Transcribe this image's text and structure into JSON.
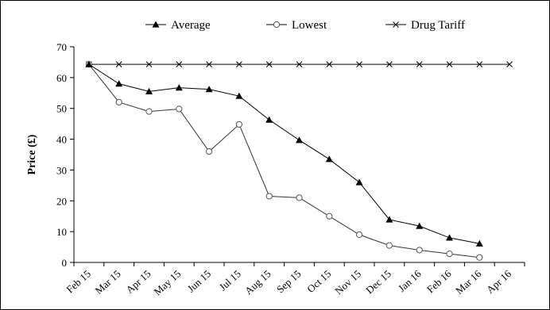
{
  "chart_data": {
    "type": "line",
    "ylabel": "Price (£)",
    "xlabel": "",
    "ylim": [
      0,
      70
    ],
    "yticks": [
      0,
      10,
      20,
      30,
      40,
      50,
      60,
      70
    ],
    "categories": [
      "Feb 15",
      "Mar 15",
      "Apr 15",
      "May 15",
      "Jun 15",
      "Jul 15",
      "Aug 15",
      "Sep 15",
      "Oct 15",
      "Nov 15",
      "Dec 15",
      "Jan 16",
      "Feb 16",
      "Mar 16",
      "Apr 16"
    ],
    "legend_position": "top",
    "grid": false,
    "series": [
      {
        "name": "Average",
        "marker": "filled-triangle",
        "values": [
          64.3,
          58.0,
          55.5,
          56.7,
          56.2,
          54.0,
          46.3,
          39.7,
          33.5,
          26.0,
          13.9,
          11.8,
          8.0,
          6.1,
          null
        ]
      },
      {
        "name": "Lowest",
        "marker": "open-circle",
        "values": [
          64.3,
          52.0,
          49.0,
          49.8,
          36.0,
          44.8,
          21.5,
          21.0,
          15.0,
          9.0,
          5.5,
          4.0,
          2.8,
          1.6,
          null
        ]
      },
      {
        "name": "Drug Tariff",
        "marker": "cross",
        "values": [
          64.3,
          64.3,
          64.3,
          64.3,
          64.3,
          64.3,
          64.3,
          64.3,
          64.3,
          64.3,
          64.3,
          64.3,
          64.3,
          64.3,
          64.3
        ]
      }
    ]
  }
}
